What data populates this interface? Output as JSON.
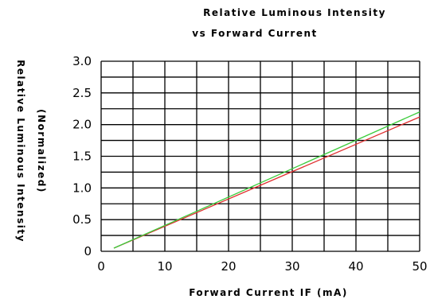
{
  "chart_data": {
    "type": "line",
    "title": "Relative Luminous Intensity",
    "subtitle": "vs Forward Current",
    "xlabel": "Forward Current IF (mA)",
    "ylabel": "Relative Luminous Intensity",
    "ylabel_unit": "(Normalized)",
    "xlim": [
      0,
      50
    ],
    "ylim": [
      0,
      3.0
    ],
    "x_ticks": [
      "0",
      "10",
      "20",
      "30",
      "40",
      "50"
    ],
    "y_ticks": [
      "0",
      "0.5",
      "1.0",
      "1.5",
      "2.0",
      "2.5",
      "3.0"
    ],
    "grid": true,
    "series": [
      {
        "color": "#e03030",
        "x": [
          2,
          50
        ],
        "y": [
          0.05,
          2.12
        ]
      },
      {
        "color": "#3ccc3c",
        "x": [
          2,
          50
        ],
        "y": [
          0.05,
          2.2
        ]
      }
    ]
  }
}
